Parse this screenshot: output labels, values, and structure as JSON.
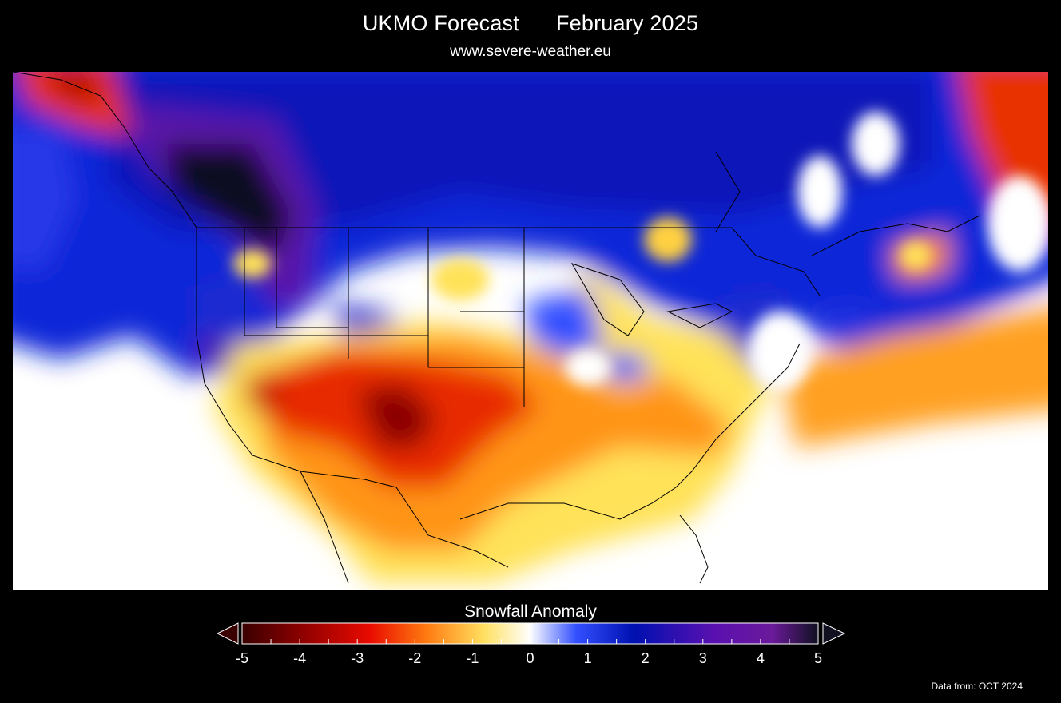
{
  "header": {
    "title_left": "UKMO Forecast",
    "title_right": "February 2025",
    "subtitle": "www.severe-weather.eu"
  },
  "map": {
    "region": "North America",
    "palette": {
      "strong_deficit": "#3a0000",
      "deficit": "#e83400",
      "slight_deficit": "#ffe060",
      "neutral": "#ffffff",
      "slight_surplus": "#3340ff",
      "surplus": "#0a18c8",
      "strong_surplus": "#5a1a9a",
      "max_surplus": "#080c1a"
    }
  },
  "legend": {
    "title": "Snowfall Anomaly",
    "ticks": [
      "-5",
      "-4",
      "-3",
      "-2",
      "-1",
      "0",
      "1",
      "2",
      "3",
      "4",
      "5"
    ],
    "range": [
      -5,
      5
    ],
    "colorbar": [
      "#3a0000",
      "#8a0000",
      "#e80a00",
      "#ff7a10",
      "#ffe060",
      "#ffffff",
      "#3350ff",
      "#0010b0",
      "#5a10b0",
      "#6a1a9a",
      "#101020"
    ]
  },
  "footer": {
    "source": "Data from: OCT 2024"
  }
}
